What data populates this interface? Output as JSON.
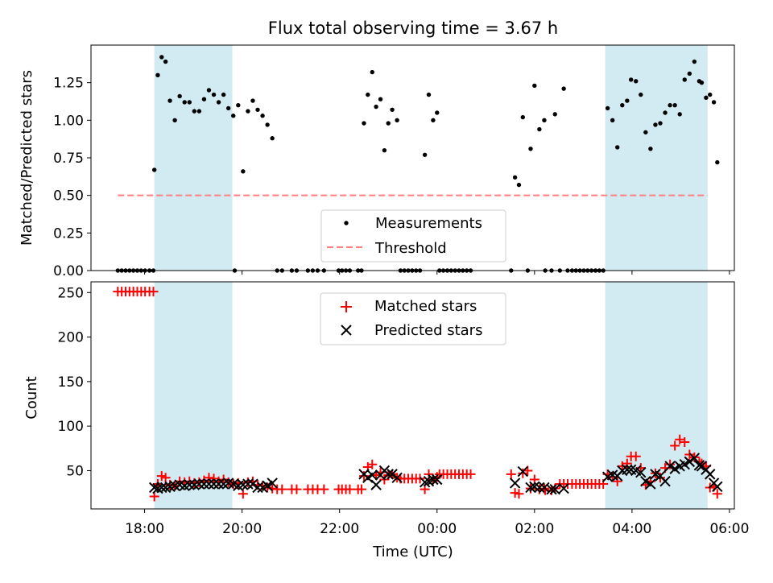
{
  "chart_data": {
    "type": "scatter",
    "title": "Flux total observing time = 3.67 h",
    "xlabel": "Time (UTC)",
    "x_units": "hours since 00:00 UTC (negative = previous day)",
    "xlim": [
      -7.1,
      6.1
    ],
    "x_ticks": [
      {
        "value": -6,
        "label": "18:00"
      },
      {
        "value": -4,
        "label": "20:00"
      },
      {
        "value": -2,
        "label": "22:00"
      },
      {
        "value": 0,
        "label": "00:00"
      },
      {
        "value": 2,
        "label": "02:00"
      },
      {
        "value": 4,
        "label": "04:00"
      },
      {
        "value": 6,
        "label": "06:00"
      }
    ],
    "shaded_regions": [
      {
        "x0": -5.8,
        "x1": -4.2
      },
      {
        "x0": 3.45,
        "x1": 5.55
      }
    ],
    "shade_color": "#add8e6",
    "top_panel": {
      "ylabel": "Matched/Predicted stars",
      "ylim": [
        0,
        1.5
      ],
      "y_ticks": [
        "0.00",
        "0.25",
        "0.50",
        "0.75",
        "1.00",
        "1.25"
      ],
      "threshold": {
        "y": 0.5,
        "x0": -6.55,
        "x1": 5.55,
        "color": "#ff7f7f",
        "label": "Threshold"
      },
      "measurements_label": "Measurements",
      "measurements_color": "#000000",
      "measurements": [
        [
          -6.55,
          0
        ],
        [
          -6.47,
          0
        ],
        [
          -6.39,
          0
        ],
        [
          -6.31,
          0
        ],
        [
          -6.23,
          0
        ],
        [
          -6.15,
          0
        ],
        [
          -6.07,
          0
        ],
        [
          -5.99,
          0
        ],
        [
          -5.9,
          0
        ],
        [
          -5.82,
          0
        ],
        [
          -5.8,
          0.67
        ],
        [
          -5.73,
          1.3
        ],
        [
          -5.65,
          1.42
        ],
        [
          -5.57,
          1.39
        ],
        [
          -5.48,
          1.13
        ],
        [
          -5.38,
          1.0
        ],
        [
          -5.28,
          1.16
        ],
        [
          -5.18,
          1.12
        ],
        [
          -5.08,
          1.12
        ],
        [
          -4.98,
          1.06
        ],
        [
          -4.88,
          1.06
        ],
        [
          -4.78,
          1.14
        ],
        [
          -4.68,
          1.2
        ],
        [
          -4.58,
          1.17
        ],
        [
          -4.48,
          1.12
        ],
        [
          -4.38,
          1.17
        ],
        [
          -4.28,
          1.08
        ],
        [
          -4.18,
          1.03
        ],
        [
          -4.08,
          1.1
        ],
        [
          -4.15,
          0
        ],
        [
          -3.98,
          0.66
        ],
        [
          -3.88,
          1.06
        ],
        [
          -3.78,
          1.13
        ],
        [
          -3.68,
          1.07
        ],
        [
          -3.58,
          1.03
        ],
        [
          -3.48,
          0.97
        ],
        [
          -3.38,
          0.88
        ],
        [
          -3.28,
          0
        ],
        [
          -3.18,
          0
        ],
        [
          -2.98,
          0
        ],
        [
          -2.88,
          0
        ],
        [
          -2.65,
          0
        ],
        [
          -2.55,
          0
        ],
        [
          -2.45,
          0
        ],
        [
          -2.32,
          0
        ],
        [
          -2.02,
          0
        ],
        [
          -1.95,
          0
        ],
        [
          -1.87,
          0
        ],
        [
          -1.79,
          0
        ],
        [
          -1.62,
          0
        ],
        [
          -1.55,
          0
        ],
        [
          -1.5,
          0.98
        ],
        [
          -1.42,
          1.17
        ],
        [
          -1.33,
          1.32
        ],
        [
          -1.25,
          1.09
        ],
        [
          -1.16,
          1.14
        ],
        [
          -1.08,
          0.8
        ],
        [
          -1.0,
          0.98
        ],
        [
          -0.92,
          1.07
        ],
        [
          -0.82,
          1.0
        ],
        [
          -0.75,
          0
        ],
        [
          -0.67,
          0
        ],
        [
          -0.59,
          0
        ],
        [
          -0.51,
          0
        ],
        [
          -0.43,
          0
        ],
        [
          -0.35,
          0
        ],
        [
          -0.25,
          0.77
        ],
        [
          -0.17,
          1.17
        ],
        [
          -0.08,
          1.0
        ],
        [
          0.0,
          1.05
        ],
        [
          0.05,
          0
        ],
        [
          0.13,
          0
        ],
        [
          0.21,
          0
        ],
        [
          0.29,
          0
        ],
        [
          0.37,
          0
        ],
        [
          0.45,
          0
        ],
        [
          0.53,
          0
        ],
        [
          0.61,
          0
        ],
        [
          0.69,
          0
        ],
        [
          1.52,
          0
        ],
        [
          1.6,
          0.62
        ],
        [
          1.68,
          0.57
        ],
        [
          1.76,
          1.02
        ],
        [
          1.86,
          0
        ],
        [
          1.92,
          0.81
        ],
        [
          2.0,
          1.23
        ],
        [
          2.1,
          0.94
        ],
        [
          2.2,
          1.0
        ],
        [
          2.22,
          0
        ],
        [
          2.35,
          0
        ],
        [
          2.42,
          1.04
        ],
        [
          2.52,
          0
        ],
        [
          2.6,
          1.21
        ],
        [
          2.68,
          0
        ],
        [
          2.77,
          0
        ],
        [
          2.85,
          0
        ],
        [
          2.93,
          0
        ],
        [
          3.01,
          0
        ],
        [
          3.09,
          0
        ],
        [
          3.17,
          0
        ],
        [
          3.25,
          0
        ],
        [
          3.33,
          0
        ],
        [
          3.41,
          0
        ],
        [
          3.5,
          1.08
        ],
        [
          3.6,
          1.0
        ],
        [
          3.7,
          0.82
        ],
        [
          3.8,
          1.1
        ],
        [
          3.9,
          1.13
        ],
        [
          3.98,
          1.27
        ],
        [
          4.08,
          1.26
        ],
        [
          4.18,
          1.17
        ],
        [
          4.28,
          0.92
        ],
        [
          4.38,
          0.81
        ],
        [
          4.48,
          0.97
        ],
        [
          4.58,
          0.98
        ],
        [
          4.68,
          1.05
        ],
        [
          4.78,
          1.1
        ],
        [
          4.88,
          1.1
        ],
        [
          4.98,
          1.04
        ],
        [
          5.08,
          1.27
        ],
        [
          5.18,
          1.31
        ],
        [
          5.28,
          1.39
        ],
        [
          5.38,
          1.26
        ],
        [
          5.43,
          1.25
        ],
        [
          5.52,
          1.15
        ],
        [
          5.6,
          1.17
        ],
        [
          5.68,
          1.12
        ],
        [
          5.75,
          0.72
        ]
      ]
    },
    "bottom_panel": {
      "ylabel": "Count",
      "ylim": [
        7,
        262
      ],
      "y_ticks": [
        50,
        100,
        150,
        200,
        250
      ],
      "matched_label": "Matched stars",
      "matched_color": "#ff0000",
      "predicted_label": "Predicted stars",
      "predicted_color": "#000000",
      "matched": [
        [
          -6.55,
          251
        ],
        [
          -6.47,
          251
        ],
        [
          -6.39,
          251
        ],
        [
          -6.31,
          251
        ],
        [
          -6.23,
          251
        ],
        [
          -6.15,
          251
        ],
        [
          -6.07,
          251
        ],
        [
          -5.99,
          251
        ],
        [
          -5.9,
          251
        ],
        [
          -5.82,
          251
        ],
        [
          -5.8,
          21
        ],
        [
          -5.73,
          35
        ],
        [
          -5.65,
          44
        ],
        [
          -5.57,
          42
        ],
        [
          -5.48,
          34
        ],
        [
          -5.38,
          33
        ],
        [
          -5.28,
          38
        ],
        [
          -5.18,
          37
        ],
        [
          -5.08,
          38
        ],
        [
          -4.98,
          36
        ],
        [
          -4.88,
          37
        ],
        [
          -4.78,
          39
        ],
        [
          -4.68,
          42
        ],
        [
          -4.58,
          41
        ],
        [
          -4.48,
          38
        ],
        [
          -4.38,
          40
        ],
        [
          -4.28,
          37
        ],
        [
          -4.18,
          35
        ],
        [
          -4.08,
          36
        ],
        [
          -3.98,
          24
        ],
        [
          -3.88,
          37
        ],
        [
          -3.78,
          38
        ],
        [
          -3.68,
          34
        ],
        [
          -3.58,
          33
        ],
        [
          -3.48,
          31
        ],
        [
          -3.38,
          30
        ],
        [
          -3.28,
          29
        ],
        [
          -3.18,
          29
        ],
        [
          -2.98,
          29
        ],
        [
          -2.88,
          29
        ],
        [
          -2.65,
          29
        ],
        [
          -2.55,
          29
        ],
        [
          -2.45,
          29
        ],
        [
          -2.32,
          29
        ],
        [
          -2.02,
          29
        ],
        [
          -1.95,
          29
        ],
        [
          -1.87,
          29
        ],
        [
          -1.79,
          29
        ],
        [
          -1.62,
          29
        ],
        [
          -1.55,
          29
        ],
        [
          -1.5,
          44
        ],
        [
          -1.42,
          54
        ],
        [
          -1.33,
          57
        ],
        [
          -1.25,
          45
        ],
        [
          -1.16,
          48
        ],
        [
          -1.08,
          40
        ],
        [
          -1.0,
          45
        ],
        [
          -0.92,
          46
        ],
        [
          -0.82,
          42
        ],
        [
          -0.75,
          41
        ],
        [
          -0.67,
          41
        ],
        [
          -0.59,
          41
        ],
        [
          -0.51,
          41
        ],
        [
          -0.43,
          41
        ],
        [
          -0.35,
          41
        ],
        [
          -0.25,
          29
        ],
        [
          -0.17,
          46
        ],
        [
          -0.08,
          40
        ],
        [
          0.0,
          43
        ],
        [
          0.05,
          46
        ],
        [
          0.13,
          46
        ],
        [
          0.21,
          46
        ],
        [
          0.29,
          46
        ],
        [
          0.37,
          46
        ],
        [
          0.45,
          46
        ],
        [
          0.53,
          46
        ],
        [
          0.61,
          46
        ],
        [
          0.69,
          46
        ],
        [
          1.52,
          46
        ],
        [
          1.6,
          25
        ],
        [
          1.68,
          24
        ],
        [
          1.76,
          47
        ],
        [
          1.86,
          50
        ],
        [
          1.92,
          30
        ],
        [
          2.0,
          40
        ],
        [
          2.1,
          29
        ],
        [
          2.2,
          30
        ],
        [
          2.22,
          28
        ],
        [
          2.35,
          28
        ],
        [
          2.42,
          30
        ],
        [
          2.52,
          35
        ],
        [
          2.6,
          35
        ],
        [
          2.68,
          35
        ],
        [
          2.77,
          35
        ],
        [
          2.85,
          35
        ],
        [
          2.93,
          35
        ],
        [
          3.01,
          35
        ],
        [
          3.09,
          35
        ],
        [
          3.17,
          35
        ],
        [
          3.25,
          35
        ],
        [
          3.33,
          35
        ],
        [
          3.41,
          35
        ],
        [
          3.5,
          46
        ],
        [
          3.6,
          43
        ],
        [
          3.7,
          38
        ],
        [
          3.8,
          55
        ],
        [
          3.9,
          58
        ],
        [
          3.98,
          66
        ],
        [
          4.08,
          66
        ],
        [
          4.18,
          53
        ],
        [
          4.28,
          34
        ],
        [
          4.38,
          38
        ],
        [
          4.48,
          47
        ],
        [
          4.58,
          42
        ],
        [
          4.68,
          53
        ],
        [
          4.78,
          57
        ],
        [
          4.88,
          78
        ],
        [
          4.98,
          85
        ],
        [
          5.08,
          82
        ],
        [
          5.18,
          68
        ],
        [
          5.28,
          65
        ],
        [
          5.38,
          60
        ],
        [
          5.43,
          58
        ],
        [
          5.52,
          55
        ],
        [
          5.6,
          31
        ],
        [
          5.68,
          32
        ],
        [
          5.75,
          24
        ]
      ],
      "predicted": [
        [
          -5.8,
          31
        ],
        [
          -5.73,
          30
        ],
        [
          -5.65,
          31
        ],
        [
          -5.57,
          31
        ],
        [
          -5.48,
          32
        ],
        [
          -5.38,
          33
        ],
        [
          -5.28,
          34
        ],
        [
          -5.18,
          33
        ],
        [
          -5.08,
          34
        ],
        [
          -4.98,
          34
        ],
        [
          -4.88,
          35
        ],
        [
          -4.78,
          35
        ],
        [
          -4.68,
          35
        ],
        [
          -4.58,
          35
        ],
        [
          -4.48,
          35
        ],
        [
          -4.38,
          35
        ],
        [
          -4.28,
          36
        ],
        [
          -4.18,
          35
        ],
        [
          -4.08,
          33
        ],
        [
          -3.98,
          34
        ],
        [
          -3.88,
          35
        ],
        [
          -3.78,
          35
        ],
        [
          -3.68,
          31
        ],
        [
          -3.58,
          31
        ],
        [
          -3.48,
          33
        ],
        [
          -3.38,
          36
        ],
        [
          -1.5,
          46
        ],
        [
          -1.42,
          42
        ],
        [
          -1.33,
          45
        ],
        [
          -1.25,
          34
        ],
        [
          -1.16,
          45
        ],
        [
          -1.08,
          50
        ],
        [
          -1.0,
          46
        ],
        [
          -0.92,
          46
        ],
        [
          -0.82,
          42
        ],
        [
          -0.25,
          37
        ],
        [
          -0.17,
          38
        ],
        [
          -0.08,
          40
        ],
        [
          0.0,
          40
        ],
        [
          1.6,
          36
        ],
        [
          1.76,
          49
        ],
        [
          1.92,
          31
        ],
        [
          2.0,
          32
        ],
        [
          2.1,
          31
        ],
        [
          2.2,
          31
        ],
        [
          2.35,
          29
        ],
        [
          2.42,
          29
        ],
        [
          2.6,
          30
        ],
        [
          3.5,
          43
        ],
        [
          3.6,
          45
        ],
        [
          3.7,
          44
        ],
        [
          3.8,
          50
        ],
        [
          3.9,
          51
        ],
        [
          3.98,
          51
        ],
        [
          4.08,
          50
        ],
        [
          4.18,
          48
        ],
        [
          4.28,
          38
        ],
        [
          4.38,
          35
        ],
        [
          4.48,
          46
        ],
        [
          4.58,
          44
        ],
        [
          4.68,
          38
        ],
        [
          4.78,
          55
        ],
        [
          4.88,
          52
        ],
        [
          4.98,
          55
        ],
        [
          5.08,
          57
        ],
        [
          5.18,
          60
        ],
        [
          5.28,
          64
        ],
        [
          5.38,
          56
        ],
        [
          5.43,
          55
        ],
        [
          5.52,
          51
        ],
        [
          5.6,
          46
        ],
        [
          5.68,
          36
        ],
        [
          5.75,
          32
        ]
      ]
    }
  }
}
